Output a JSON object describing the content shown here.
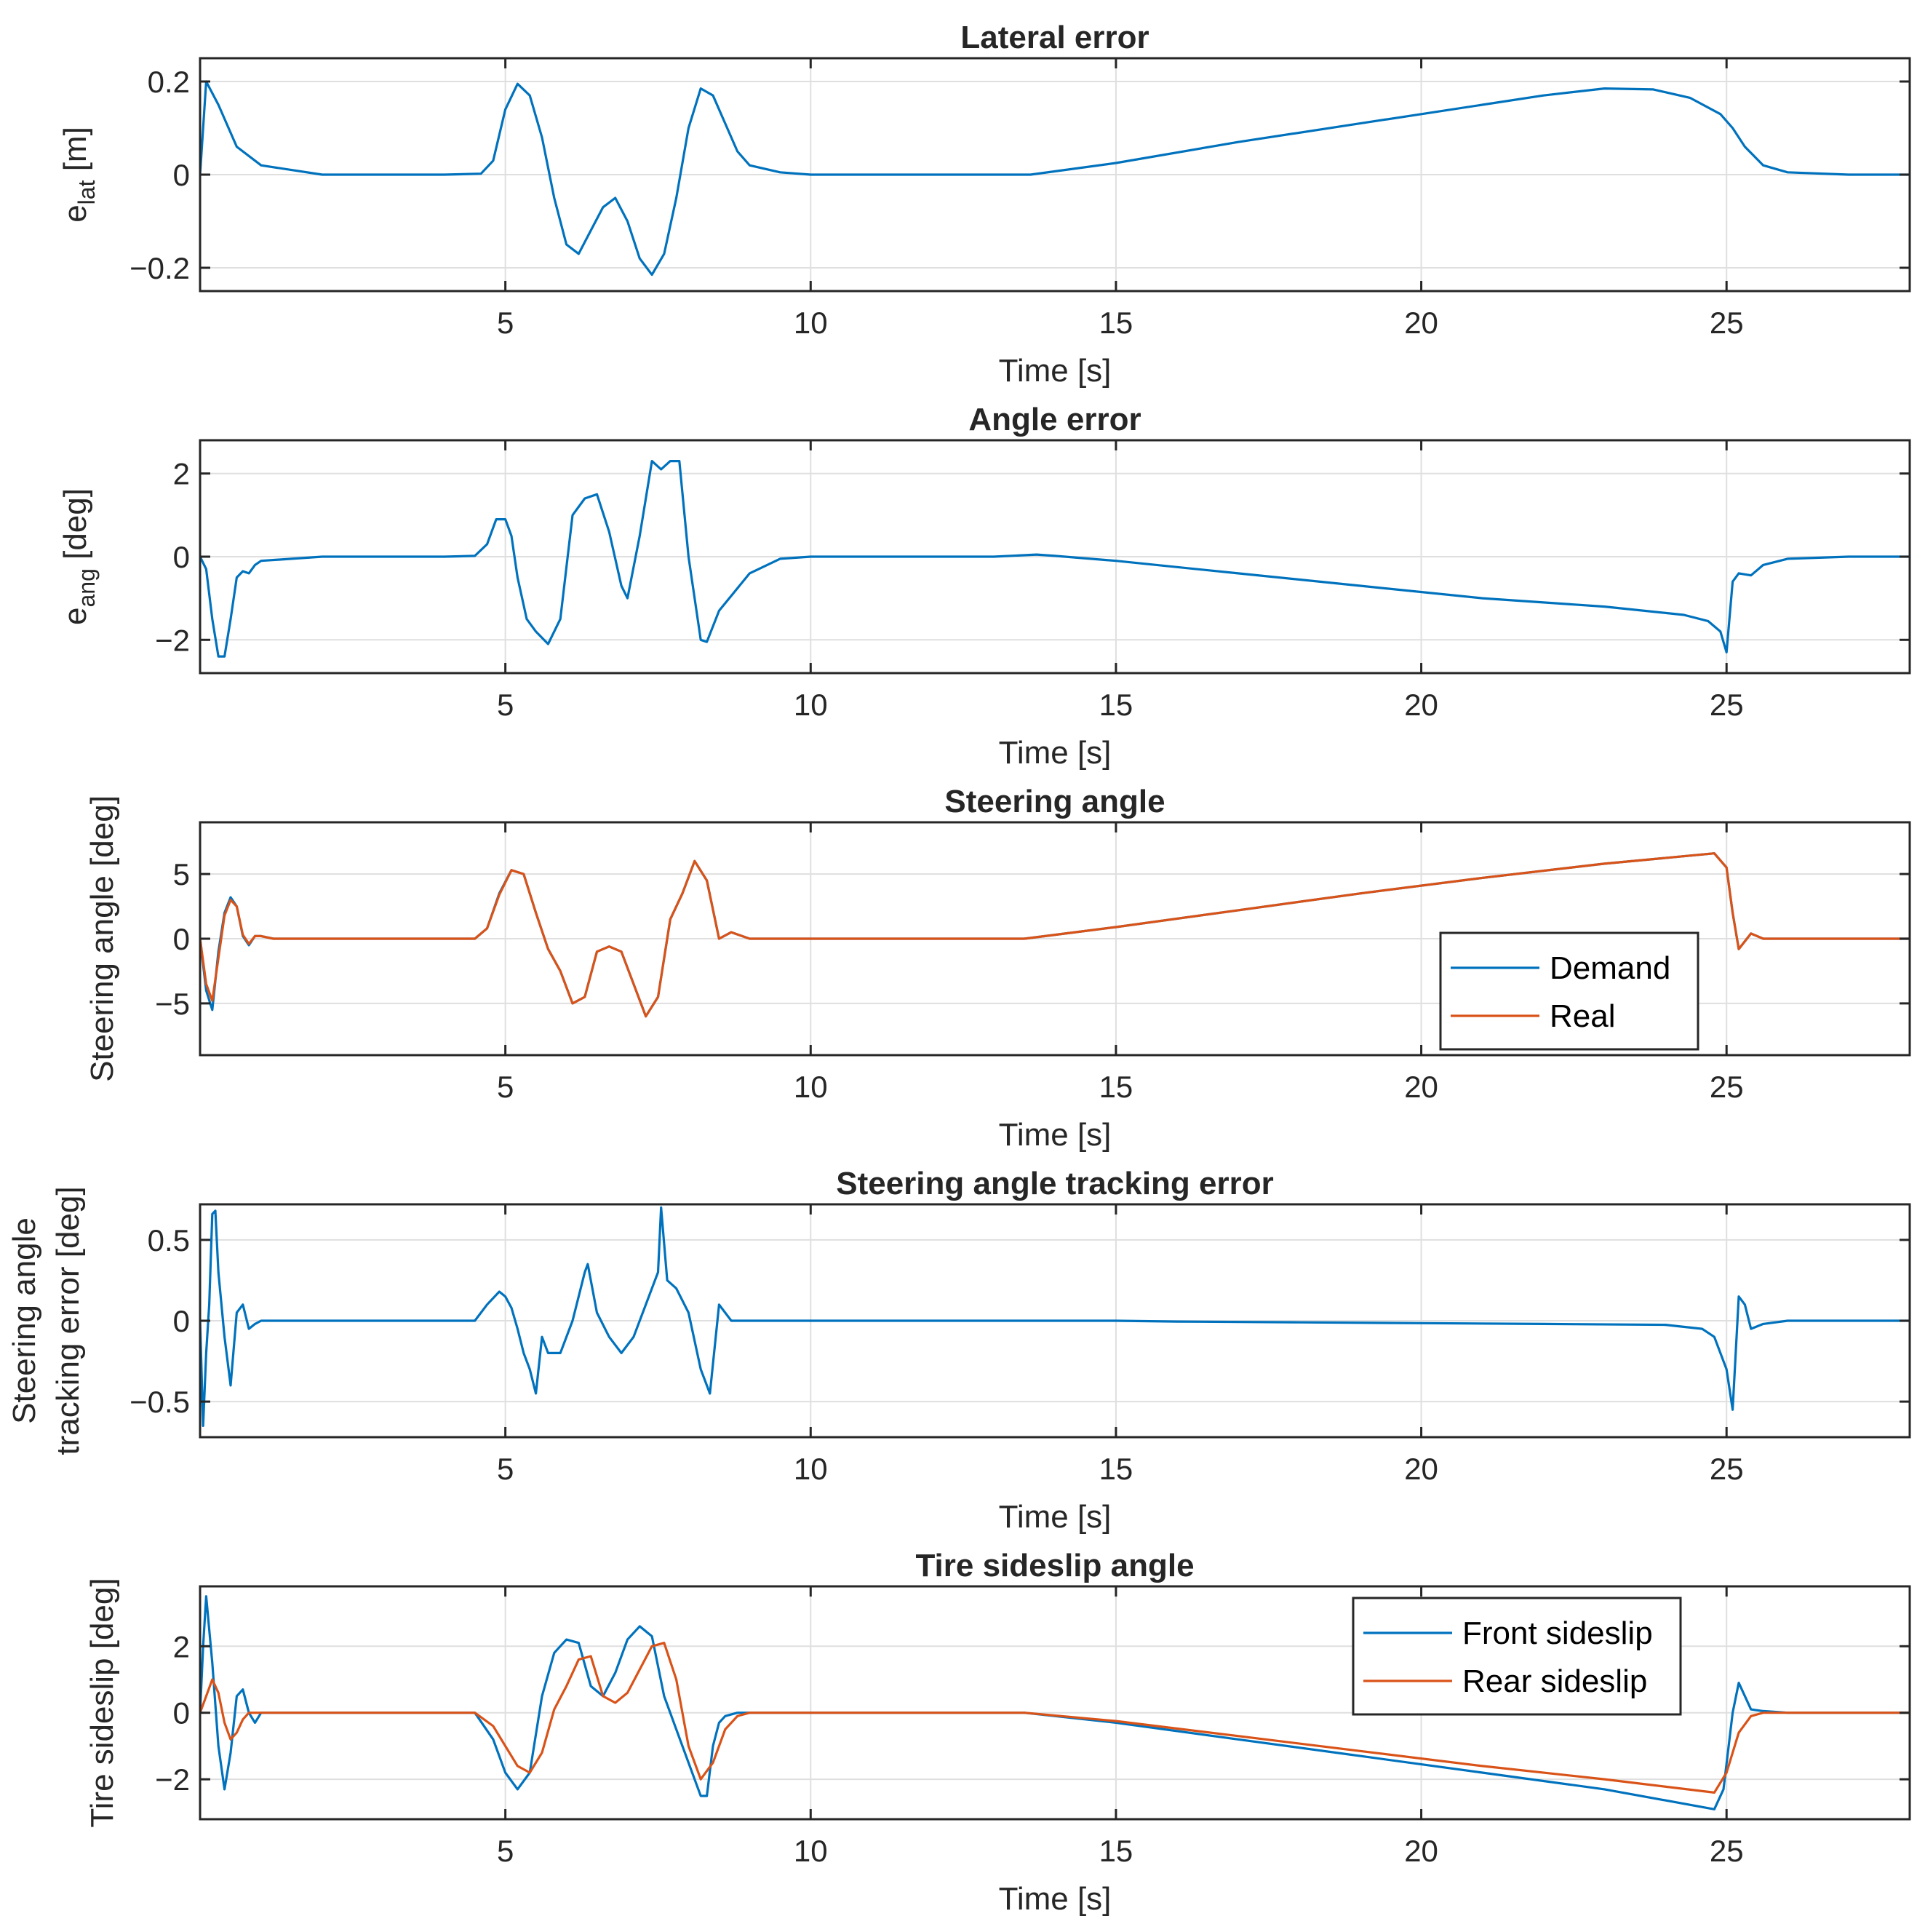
{
  "colors": {
    "series_blue": "#0072BD",
    "series_orange": "#D95319",
    "grid": "#DFDFDF",
    "axes": "#262626",
    "background": "#FFFFFF"
  },
  "chart_data": [
    {
      "id": "lateral_error",
      "type": "line",
      "title": "Lateral error",
      "xlabel": "Time [s]",
      "ylabel_main": "e",
      "ylabel_sub": "lat",
      "ylabel_suffix": " [m]",
      "xlim": [
        0,
        28
      ],
      "ylim": [
        -0.25,
        0.25
      ],
      "xticks": [
        5,
        10,
        15,
        20,
        25
      ],
      "xtick_labels": [
        "5",
        "10",
        "15",
        "20",
        "25"
      ],
      "yticks": [
        -0.2,
        0,
        0.2
      ],
      "ytick_labels": [
        "−0.2",
        "0",
        "0.2"
      ],
      "series": [
        {
          "name": "e_lat",
          "color": "#0072BD",
          "x": [
            0,
            0.1,
            0.3,
            0.6,
            1,
            2,
            3,
            4,
            4.6,
            4.8,
            5,
            5.2,
            5.4,
            5.6,
            5.8,
            6,
            6.2,
            6.4,
            6.6,
            6.8,
            7,
            7.2,
            7.4,
            7.6,
            7.8,
            8,
            8.2,
            8.4,
            8.6,
            8.8,
            9,
            9.5,
            10,
            11,
            12,
            13,
            13.6,
            15,
            17,
            19,
            21,
            22,
            23,
            23.8,
            24.4,
            24.9,
            25.1,
            25.3,
            25.6,
            26,
            27,
            28
          ],
          "y": [
            0,
            0.2,
            0.15,
            0.06,
            0.02,
            0,
            0,
            0,
            0.002,
            0.03,
            0.14,
            0.195,
            0.17,
            0.08,
            -0.05,
            -0.15,
            -0.17,
            -0.12,
            -0.07,
            -0.05,
            -0.1,
            -0.18,
            -0.215,
            -0.17,
            -0.05,
            0.1,
            0.185,
            0.17,
            0.11,
            0.05,
            0.02,
            0.005,
            0,
            0,
            0,
            0,
            0,
            0.025,
            0.07,
            0.11,
            0.15,
            0.17,
            0.185,
            0.183,
            0.165,
            0.13,
            0.1,
            0.06,
            0.02,
            0.005,
            0,
            0
          ]
        }
      ]
    },
    {
      "id": "angle_error",
      "type": "line",
      "title": "Angle error",
      "xlabel": "Time [s]",
      "ylabel_main": "e",
      "ylabel_sub": "ang",
      "ylabel_suffix": " [deg]",
      "xlim": [
        0,
        28
      ],
      "ylim": [
        -2.8,
        2.8
      ],
      "xticks": [
        5,
        10,
        15,
        20,
        25
      ],
      "xtick_labels": [
        "5",
        "10",
        "15",
        "20",
        "25"
      ],
      "yticks": [
        -2,
        0,
        2
      ],
      "ytick_labels": [
        "−2",
        "0",
        "2"
      ],
      "series": [
        {
          "name": "e_ang",
          "color": "#0072BD",
          "x": [
            0,
            0.1,
            0.2,
            0.3,
            0.4,
            0.5,
            0.6,
            0.7,
            0.8,
            0.9,
            1,
            1.5,
            2,
            3,
            4,
            4.5,
            4.7,
            4.85,
            5,
            5.1,
            5.2,
            5.35,
            5.5,
            5.7,
            5.9,
            6.1,
            6.3,
            6.5,
            6.7,
            6.9,
            7,
            7.2,
            7.4,
            7.55,
            7.7,
            7.85,
            8,
            8.2,
            8.3,
            8.5,
            9,
            9.5,
            10,
            11,
            12,
            13,
            13.7,
            14,
            15,
            17,
            19,
            21,
            23,
            24.3,
            24.7,
            24.9,
            25,
            25.1,
            25.2,
            25.4,
            25.6,
            26,
            27,
            28
          ],
          "y": [
            0,
            -0.3,
            -1.5,
            -2.4,
            -2.4,
            -1.5,
            -0.5,
            -0.35,
            -0.4,
            -0.2,
            -0.1,
            -0.05,
            0,
            0,
            0,
            0.02,
            0.3,
            0.9,
            0.9,
            0.5,
            -0.5,
            -1.5,
            -1.8,
            -2.1,
            -1.5,
            1,
            1.4,
            1.5,
            0.6,
            -0.7,
            -1,
            0.5,
            2.3,
            2.1,
            2.3,
            2.3,
            0,
            -2,
            -2.05,
            -1.3,
            -0.4,
            -0.05,
            0,
            0,
            0,
            0,
            0.05,
            0.02,
            -0.1,
            -0.4,
            -0.7,
            -1,
            -1.2,
            -1.4,
            -1.55,
            -1.8,
            -2.3,
            -0.6,
            -0.4,
            -0.45,
            -0.2,
            -0.05,
            0,
            0
          ]
        }
      ]
    },
    {
      "id": "steering_angle",
      "type": "line",
      "title": "Steering angle",
      "xlabel": "Time [s]",
      "ylabel": "Steering angle [deg]",
      "xlim": [
        0,
        28
      ],
      "ylim": [
        -9,
        9
      ],
      "xticks": [
        5,
        10,
        15,
        20,
        25
      ],
      "xtick_labels": [
        "5",
        "10",
        "15",
        "20",
        "25"
      ],
      "yticks": [
        -5,
        0,
        5
      ],
      "ytick_labels": [
        "−5",
        "0",
        "5"
      ],
      "legend": {
        "position": "right",
        "entries": [
          "Demand",
          "Real"
        ]
      },
      "series": [
        {
          "name": "Demand",
          "color": "#0072BD",
          "x": [
            0,
            0.1,
            0.2,
            0.3,
            0.4,
            0.5,
            0.6,
            0.7,
            0.8,
            0.9,
            1,
            1.2,
            1.5,
            2,
            3,
            4,
            4.5,
            4.7,
            4.9,
            5.1,
            5.3,
            5.5,
            5.7,
            5.9,
            6.1,
            6.3,
            6.5,
            6.7,
            6.9,
            7.1,
            7.3,
            7.5,
            7.7,
            7.9,
            8.1,
            8.3,
            8.5,
            8.7,
            9,
            10,
            11,
            12,
            13,
            13.5,
            15,
            17,
            19,
            21,
            23,
            24.8,
            25,
            25.1,
            25.2,
            25.4,
            25.6,
            26,
            27,
            28
          ],
          "y": [
            0,
            -4,
            -5.5,
            -1,
            2,
            3.2,
            2.5,
            0.2,
            -0.5,
            0.2,
            0.2,
            0,
            0,
            0,
            0,
            0,
            0,
            0.8,
            3.5,
            5.3,
            5,
            2,
            -0.8,
            -2.5,
            -5,
            -4.5,
            -1,
            -0.6,
            -1,
            -3.5,
            -6,
            -4.5,
            1.5,
            3.5,
            6,
            4.5,
            0,
            0.5,
            0,
            0,
            0,
            0,
            0,
            0,
            0.9,
            2.2,
            3.5,
            4.7,
            5.8,
            6.6,
            5.5,
            2,
            -0.8,
            0.4,
            0,
            0,
            0,
            0
          ]
        },
        {
          "name": "Real",
          "color": "#D95319",
          "x": [
            0,
            0.1,
            0.2,
            0.3,
            0.4,
            0.5,
            0.6,
            0.7,
            0.8,
            0.9,
            1,
            1.2,
            1.5,
            2,
            3,
            4,
            4.5,
            4.7,
            4.9,
            5.1,
            5.3,
            5.5,
            5.7,
            5.9,
            6.1,
            6.3,
            6.5,
            6.7,
            6.9,
            7.1,
            7.3,
            7.5,
            7.7,
            7.9,
            8.1,
            8.3,
            8.5,
            8.7,
            9,
            10,
            11,
            12,
            13,
            13.5,
            15,
            17,
            19,
            21,
            23,
            24.8,
            25,
            25.1,
            25.2,
            25.4,
            25.6,
            26,
            27,
            28
          ],
          "y": [
            0,
            -3.5,
            -4.8,
            -1.5,
            1.8,
            3,
            2.5,
            0.3,
            -0.4,
            0.2,
            0.2,
            0,
            0,
            0,
            0,
            0,
            0,
            0.8,
            3.4,
            5.3,
            5,
            2,
            -0.8,
            -2.5,
            -5,
            -4.5,
            -1,
            -0.6,
            -1,
            -3.5,
            -6,
            -4.5,
            1.5,
            3.5,
            6,
            4.5,
            0,
            0.5,
            0,
            0,
            0,
            0,
            0,
            0,
            0.9,
            2.2,
            3.5,
            4.7,
            5.8,
            6.6,
            5.5,
            2,
            -0.8,
            0.4,
            0,
            0,
            0,
            0
          ]
        }
      ]
    },
    {
      "id": "steering_tracking_error",
      "type": "line",
      "title": "Steering angle tracking error",
      "xlabel": "Time [s]",
      "ylabel_line1": "Steering angle",
      "ylabel_line2": "tracking error [deg]",
      "xlim": [
        0,
        28
      ],
      "ylim": [
        -0.72,
        0.72
      ],
      "xticks": [
        5,
        10,
        15,
        20,
        25
      ],
      "xtick_labels": [
        "5",
        "10",
        "15",
        "20",
        "25"
      ],
      "yticks": [
        -0.5,
        0,
        0.5
      ],
      "ytick_labels": [
        "−0.5",
        "0",
        "0.5"
      ],
      "series": [
        {
          "name": "tracking error",
          "color": "#0072BD",
          "x": [
            0,
            0.05,
            0.1,
            0.15,
            0.2,
            0.25,
            0.3,
            0.4,
            0.5,
            0.6,
            0.7,
            0.8,
            0.9,
            1,
            1.1,
            1.2,
            1.5,
            2,
            3,
            4,
            4.5,
            4.7,
            4.9,
            5,
            5.1,
            5.2,
            5.3,
            5.4,
            5.5,
            5.6,
            5.7,
            5.9,
            6.1,
            6.3,
            6.35,
            6.5,
            6.7,
            6.9,
            7.1,
            7.3,
            7.5,
            7.55,
            7.65,
            7.8,
            8,
            8.2,
            8.35,
            8.5,
            8.7,
            9,
            10,
            12,
            14,
            15,
            16,
            18,
            20,
            22,
            24,
            24.6,
            24.8,
            24.9,
            25,
            25.1,
            25.2,
            25.3,
            25.4,
            25.6,
            26,
            27,
            28
          ],
          "y": [
            0,
            -0.65,
            -0.2,
            0.1,
            0.66,
            0.68,
            0.3,
            -0.1,
            -0.4,
            0.05,
            0.1,
            -0.05,
            -0.02,
            0,
            0,
            0,
            0,
            0,
            0,
            0,
            0,
            0.1,
            0.18,
            0.15,
            0.08,
            -0.05,
            -0.2,
            -0.3,
            -0.45,
            -0.1,
            -0.2,
            -0.2,
            0,
            0.3,
            0.35,
            0.05,
            -0.1,
            -0.2,
            -0.1,
            0.1,
            0.3,
            0.7,
            0.25,
            0.2,
            0.05,
            -0.3,
            -0.45,
            0.1,
            0,
            0,
            0,
            0,
            0,
            0,
            -0.005,
            -0.01,
            -0.015,
            -0.02,
            -0.025,
            -0.05,
            -0.1,
            -0.2,
            -0.3,
            -0.55,
            0.15,
            0.1,
            -0.05,
            -0.02,
            0,
            0,
            0
          ]
        }
      ]
    },
    {
      "id": "tire_sideslip",
      "type": "line",
      "title": "Tire sideslip angle",
      "xlabel": "Time [s]",
      "ylabel": "Tire sideslip [deg]",
      "xlim": [
        0,
        28
      ],
      "ylim": [
        -3.2,
        3.8
      ],
      "xticks": [
        5,
        10,
        15,
        20,
        25
      ],
      "xtick_labels": [
        "5",
        "10",
        "15",
        "20",
        "25"
      ],
      "yticks": [
        -2,
        0,
        2
      ],
      "ytick_labels": [
        "−2",
        "0",
        "2"
      ],
      "legend": {
        "position": "top-right",
        "entries": [
          "Front sideslip",
          "Rear sideslip"
        ]
      },
      "series": [
        {
          "name": "Front sideslip",
          "color": "#0072BD",
          "x": [
            0,
            0.05,
            0.1,
            0.2,
            0.3,
            0.4,
            0.5,
            0.6,
            0.7,
            0.8,
            0.9,
            1,
            1.2,
            1.5,
            2,
            3,
            4,
            4.5,
            4.8,
            5,
            5.2,
            5.4,
            5.6,
            5.8,
            6,
            6.2,
            6.4,
            6.6,
            6.8,
            7,
            7.2,
            7.4,
            7.6,
            7.8,
            8,
            8.2,
            8.3,
            8.4,
            8.5,
            8.6,
            8.8,
            9,
            10,
            12,
            13.5,
            15,
            17,
            19,
            21,
            23,
            24.8,
            24.95,
            25.1,
            25.2,
            25.4,
            25.6,
            26,
            27,
            28
          ],
          "y": [
            0,
            2,
            3.5,
            1.5,
            -1,
            -2.3,
            -1.2,
            0.5,
            0.7,
            0,
            -0.3,
            0,
            0,
            0,
            0,
            0,
            0,
            0,
            -0.8,
            -1.8,
            -2.3,
            -1.8,
            0.5,
            1.8,
            2.2,
            2.1,
            0.8,
            0.5,
            1.2,
            2.2,
            2.6,
            2.3,
            0.5,
            -0.5,
            -1.5,
            -2.5,
            -2.5,
            -1,
            -0.3,
            -0.1,
            0,
            0,
            0,
            0,
            0,
            -0.3,
            -0.8,
            -1.3,
            -1.8,
            -2.3,
            -2.9,
            -2.3,
            0,
            0.9,
            0.1,
            0.05,
            0,
            0,
            0
          ]
        },
        {
          "name": "Rear sideslip",
          "color": "#D95319",
          "x": [
            0,
            0.1,
            0.2,
            0.3,
            0.4,
            0.5,
            0.6,
            0.7,
            0.8,
            0.9,
            1,
            1.2,
            1.5,
            2,
            3,
            4,
            4.5,
            4.8,
            5,
            5.2,
            5.4,
            5.6,
            5.8,
            6,
            6.2,
            6.4,
            6.6,
            6.8,
            7,
            7.2,
            7.4,
            7.6,
            7.8,
            8,
            8.2,
            8.4,
            8.6,
            8.8,
            9,
            10,
            12,
            13.5,
            15,
            17,
            19,
            21,
            23,
            24.8,
            25,
            25.2,
            25.4,
            25.6,
            26,
            27,
            28
          ],
          "y": [
            0,
            0.5,
            1,
            0.6,
            -0.3,
            -0.8,
            -0.6,
            -0.2,
            0,
            0,
            0,
            0,
            0,
            0,
            0,
            0,
            0,
            -0.4,
            -1,
            -1.6,
            -1.8,
            -1.2,
            0.1,
            0.8,
            1.6,
            1.7,
            0.5,
            0.3,
            0.6,
            1.3,
            2,
            2.1,
            1,
            -1,
            -2,
            -1.5,
            -0.5,
            -0.1,
            0,
            0,
            0,
            0,
            -0.25,
            -0.7,
            -1.15,
            -1.6,
            -2,
            -2.4,
            -1.8,
            -0.6,
            -0.1,
            0,
            0,
            0,
            0
          ]
        }
      ]
    }
  ]
}
